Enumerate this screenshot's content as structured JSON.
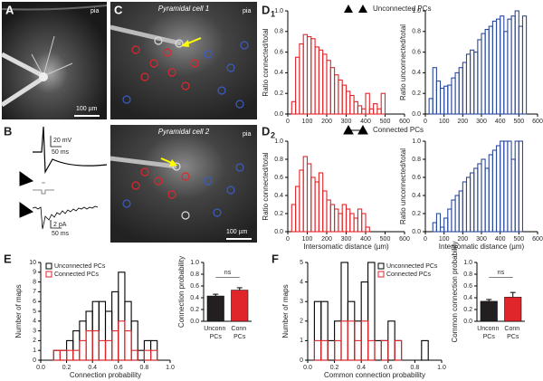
{
  "labels": {
    "panels": [
      "A",
      "B",
      "C",
      "E",
      "F"
    ],
    "d_panels": [
      {
        "letter": "D",
        "index": "1",
        "legend": "Unconnected PCs"
      },
      {
        "letter": "D",
        "index": "2",
        "legend": "Connected PCs"
      }
    ],
    "pia": [
      "pia",
      "pia",
      "pia"
    ],
    "cells": [
      "Pyramidal cell 1",
      "Pyramidal cell 2"
    ],
    "scale_um": [
      "100 µm",
      "100 µm"
    ],
    "scale_b": [
      "20 mV",
      "50 ms",
      "2 pA",
      "50 ms"
    ]
  },
  "chart_data": [
    {
      "type": "histogram",
      "color": "#e0262b",
      "ylabel": "Ratio connected/total",
      "xlim": [
        0,
        600
      ],
      "xticks": [
        0,
        100,
        200,
        300,
        400,
        500,
        600
      ],
      "ylim": [
        0,
        1
      ],
      "yticks": [
        {
          "value": 0,
          "label": "0.0"
        },
        0.2,
        0.4,
        0.6,
        0.8,
        {
          "value": 1,
          "label": "1.0"
        }
      ],
      "bins": [
        20,
        40,
        60,
        80,
        100,
        120,
        140,
        160,
        180,
        200,
        220,
        240,
        260,
        280,
        300,
        320,
        340,
        360,
        380,
        400,
        420,
        440,
        460,
        480,
        500
      ],
      "values": [
        0.12,
        0.55,
        0.68,
        0.77,
        0.75,
        0.73,
        0.65,
        0.62,
        0.58,
        0.52,
        0.45,
        0.38,
        0.33,
        0.28,
        0.22,
        0.18,
        0.12,
        0.08,
        0.05,
        0.2,
        0.05,
        0.1,
        0.05,
        0.2
      ]
    },
    {
      "type": "histogram",
      "color": "#2b4a9c",
      "ylabel": "Ratio unconnected/total",
      "xlim": [
        0,
        600
      ],
      "xticks": [
        0,
        100,
        200,
        300,
        400,
        500,
        600
      ],
      "ylim": [
        0,
        1
      ],
      "yticks": [
        {
          "value": 0,
          "label": "0.0"
        },
        0.2,
        0.4,
        0.6,
        0.8,
        {
          "value": 1,
          "label": "1.0"
        }
      ],
      "bins": [
        20,
        40,
        60,
        80,
        100,
        120,
        140,
        160,
        180,
        200,
        220,
        240,
        260,
        280,
        300,
        320,
        340,
        360,
        380,
        400,
        420,
        440,
        460,
        480,
        500,
        520,
        540
      ],
      "values": [
        0.15,
        0.45,
        0.32,
        0.25,
        0.27,
        0.28,
        0.35,
        0.4,
        0.45,
        0.5,
        0.58,
        0.62,
        0.6,
        0.72,
        0.78,
        0.82,
        0.85,
        0.9,
        0.92,
        0.95,
        0.8,
        0.92,
        0.95,
        1.0,
        0.85,
        0.95
      ]
    },
    {
      "type": "histogram",
      "color": "#e0262b",
      "ylabel": "Ratio connected/total",
      "xlabel": "Intersomatic distance (µm)",
      "xlim": [
        0,
        600
      ],
      "xticks": [
        0,
        100,
        200,
        300,
        400,
        500,
        600
      ],
      "ylim": [
        0,
        1
      ],
      "yticks": [
        {
          "value": 0,
          "label": "0.0"
        },
        0.2,
        0.4,
        0.6,
        0.8,
        {
          "value": 1,
          "label": "1.0"
        }
      ],
      "bins": [
        20,
        40,
        60,
        80,
        100,
        120,
        140,
        160,
        180,
        200,
        220,
        240,
        260,
        280,
        300,
        320,
        340,
        360,
        380,
        400,
        420
      ],
      "values": [
        0.3,
        0.5,
        0.68,
        0.83,
        0.75,
        0.6,
        0.55,
        0.65,
        0.45,
        0.35,
        0.3,
        0.25,
        0.2,
        0.3,
        0.25,
        0.2,
        0.15,
        0.25,
        0.2,
        0.05
      ]
    },
    {
      "type": "histogram",
      "color": "#2b4a9c",
      "ylabel": "Ratio unconnected/total",
      "xlabel": "Intersomatic distance (µm)",
      "xlim": [
        0,
        600
      ],
      "xticks": [
        0,
        100,
        200,
        300,
        400,
        500,
        600
      ],
      "ylim": [
        0,
        1
      ],
      "yticks": [
        {
          "value": 0,
          "label": "0.0"
        },
        0.2,
        0.4,
        0.6,
        0.8,
        {
          "value": 1,
          "label": "1.0"
        }
      ],
      "bins": [
        40,
        60,
        80,
        100,
        120,
        140,
        160,
        180,
        200,
        220,
        240,
        260,
        280,
        300,
        320,
        340,
        360,
        380,
        400,
        420,
        440,
        460,
        480,
        500,
        520
      ],
      "values": [
        0.1,
        0.2,
        0.05,
        0.15,
        0.25,
        0.35,
        0.4,
        0.45,
        0.55,
        0.6,
        0.65,
        0.7,
        0.75,
        0.8,
        0.7,
        0.85,
        0.9,
        0.95,
        1.0,
        1.0,
        1.0,
        0.8,
        1.0,
        1.0
      ]
    },
    {
      "type": "histogram",
      "ylabel": "Number of maps",
      "xlabel": "Connection probability",
      "legend": "upper left",
      "xlim": [
        0,
        1
      ],
      "xticks": [
        {
          "value": 0,
          "label": "0.0"
        },
        0.2,
        0.4,
        0.6,
        0.8,
        {
          "value": 1,
          "label": "1.0"
        }
      ],
      "ylim": [
        0,
        10
      ],
      "yticks": [
        0,
        1,
        2,
        3,
        4,
        5,
        6,
        7,
        8,
        9,
        10
      ],
      "bins": [
        0.1,
        0.15,
        0.2,
        0.25,
        0.3,
        0.35,
        0.4,
        0.45,
        0.5,
        0.55,
        0.6,
        0.65,
        0.7,
        0.75,
        0.8,
        0.85,
        0.9
      ],
      "series": [
        {
          "name": "Unconnected PCs",
          "color": "#000000",
          "values": [
            1,
            1,
            2,
            3,
            4,
            5,
            6,
            6,
            5,
            7,
            9,
            6,
            4,
            1,
            2,
            2
          ]
        },
        {
          "name": "Connected PCs",
          "color": "#e0262b",
          "values": [
            1,
            1,
            1,
            1,
            2,
            3,
            3,
            2,
            2,
            3,
            4,
            3,
            1,
            0,
            1,
            1
          ]
        }
      ]
    },
    {
      "type": "bar",
      "ylabel": "Connection probability",
      "annotation": "ns",
      "categories": [
        "Unconn PCs",
        "Conn PCs"
      ],
      "values": [
        0.43,
        0.53
      ],
      "errors": [
        0.03,
        0.04
      ],
      "colors": [
        "#231f20",
        "#e0262b"
      ],
      "ylim": [
        0,
        1
      ],
      "yticks": [
        {
          "value": 0,
          "label": "0.0"
        },
        0.2,
        0.4,
        0.6,
        0.8,
        {
          "value": 1,
          "label": "1.0"
        }
      ]
    },
    {
      "type": "histogram",
      "ylabel": "Number of maps",
      "xlabel": "Common connection probability",
      "legend": "upper right",
      "xlim": [
        0,
        1
      ],
      "xticks": [
        {
          "value": 0,
          "label": "0.0"
        },
        0.2,
        0.4,
        0.6,
        0.8,
        {
          "value": 1,
          "label": "1.0"
        }
      ],
      "ylim": [
        0,
        5
      ],
      "yticks": [
        0,
        1,
        2,
        3,
        4,
        5
      ],
      "bins": [
        0.05,
        0.1,
        0.15,
        0.2,
        0.25,
        0.3,
        0.35,
        0.4,
        0.45,
        0.5,
        0.55,
        0.6,
        0.65,
        0.7,
        0.75,
        0.8,
        0.85,
        0.9
      ],
      "series": [
        {
          "name": "Unconnected PCs",
          "color": "#000000",
          "values": [
            3,
            3,
            1,
            2,
            5,
            3,
            2,
            4,
            5,
            1,
            1,
            2,
            1,
            0,
            0,
            0,
            1
          ]
        },
        {
          "name": "Connected PCs",
          "color": "#e0262b",
          "values": [
            1,
            1,
            0,
            1,
            2,
            2,
            1,
            2,
            1,
            0,
            1,
            0,
            1,
            0,
            0,
            0,
            0
          ]
        }
      ]
    },
    {
      "type": "bar",
      "ylabel": "Common connection probability",
      "annotation": "ns",
      "categories": [
        "Unconn PCs",
        "Conn PCs"
      ],
      "values": [
        0.34,
        0.41
      ],
      "errors": [
        0.03,
        0.08
      ],
      "colors": [
        "#231f20",
        "#e0262b"
      ],
      "ylim": [
        0,
        1
      ],
      "yticks": [
        {
          "value": 0,
          "label": "0.0"
        },
        0.2,
        0.4,
        0.6,
        0.8,
        {
          "value": 1,
          "label": "1.0"
        }
      ]
    }
  ]
}
